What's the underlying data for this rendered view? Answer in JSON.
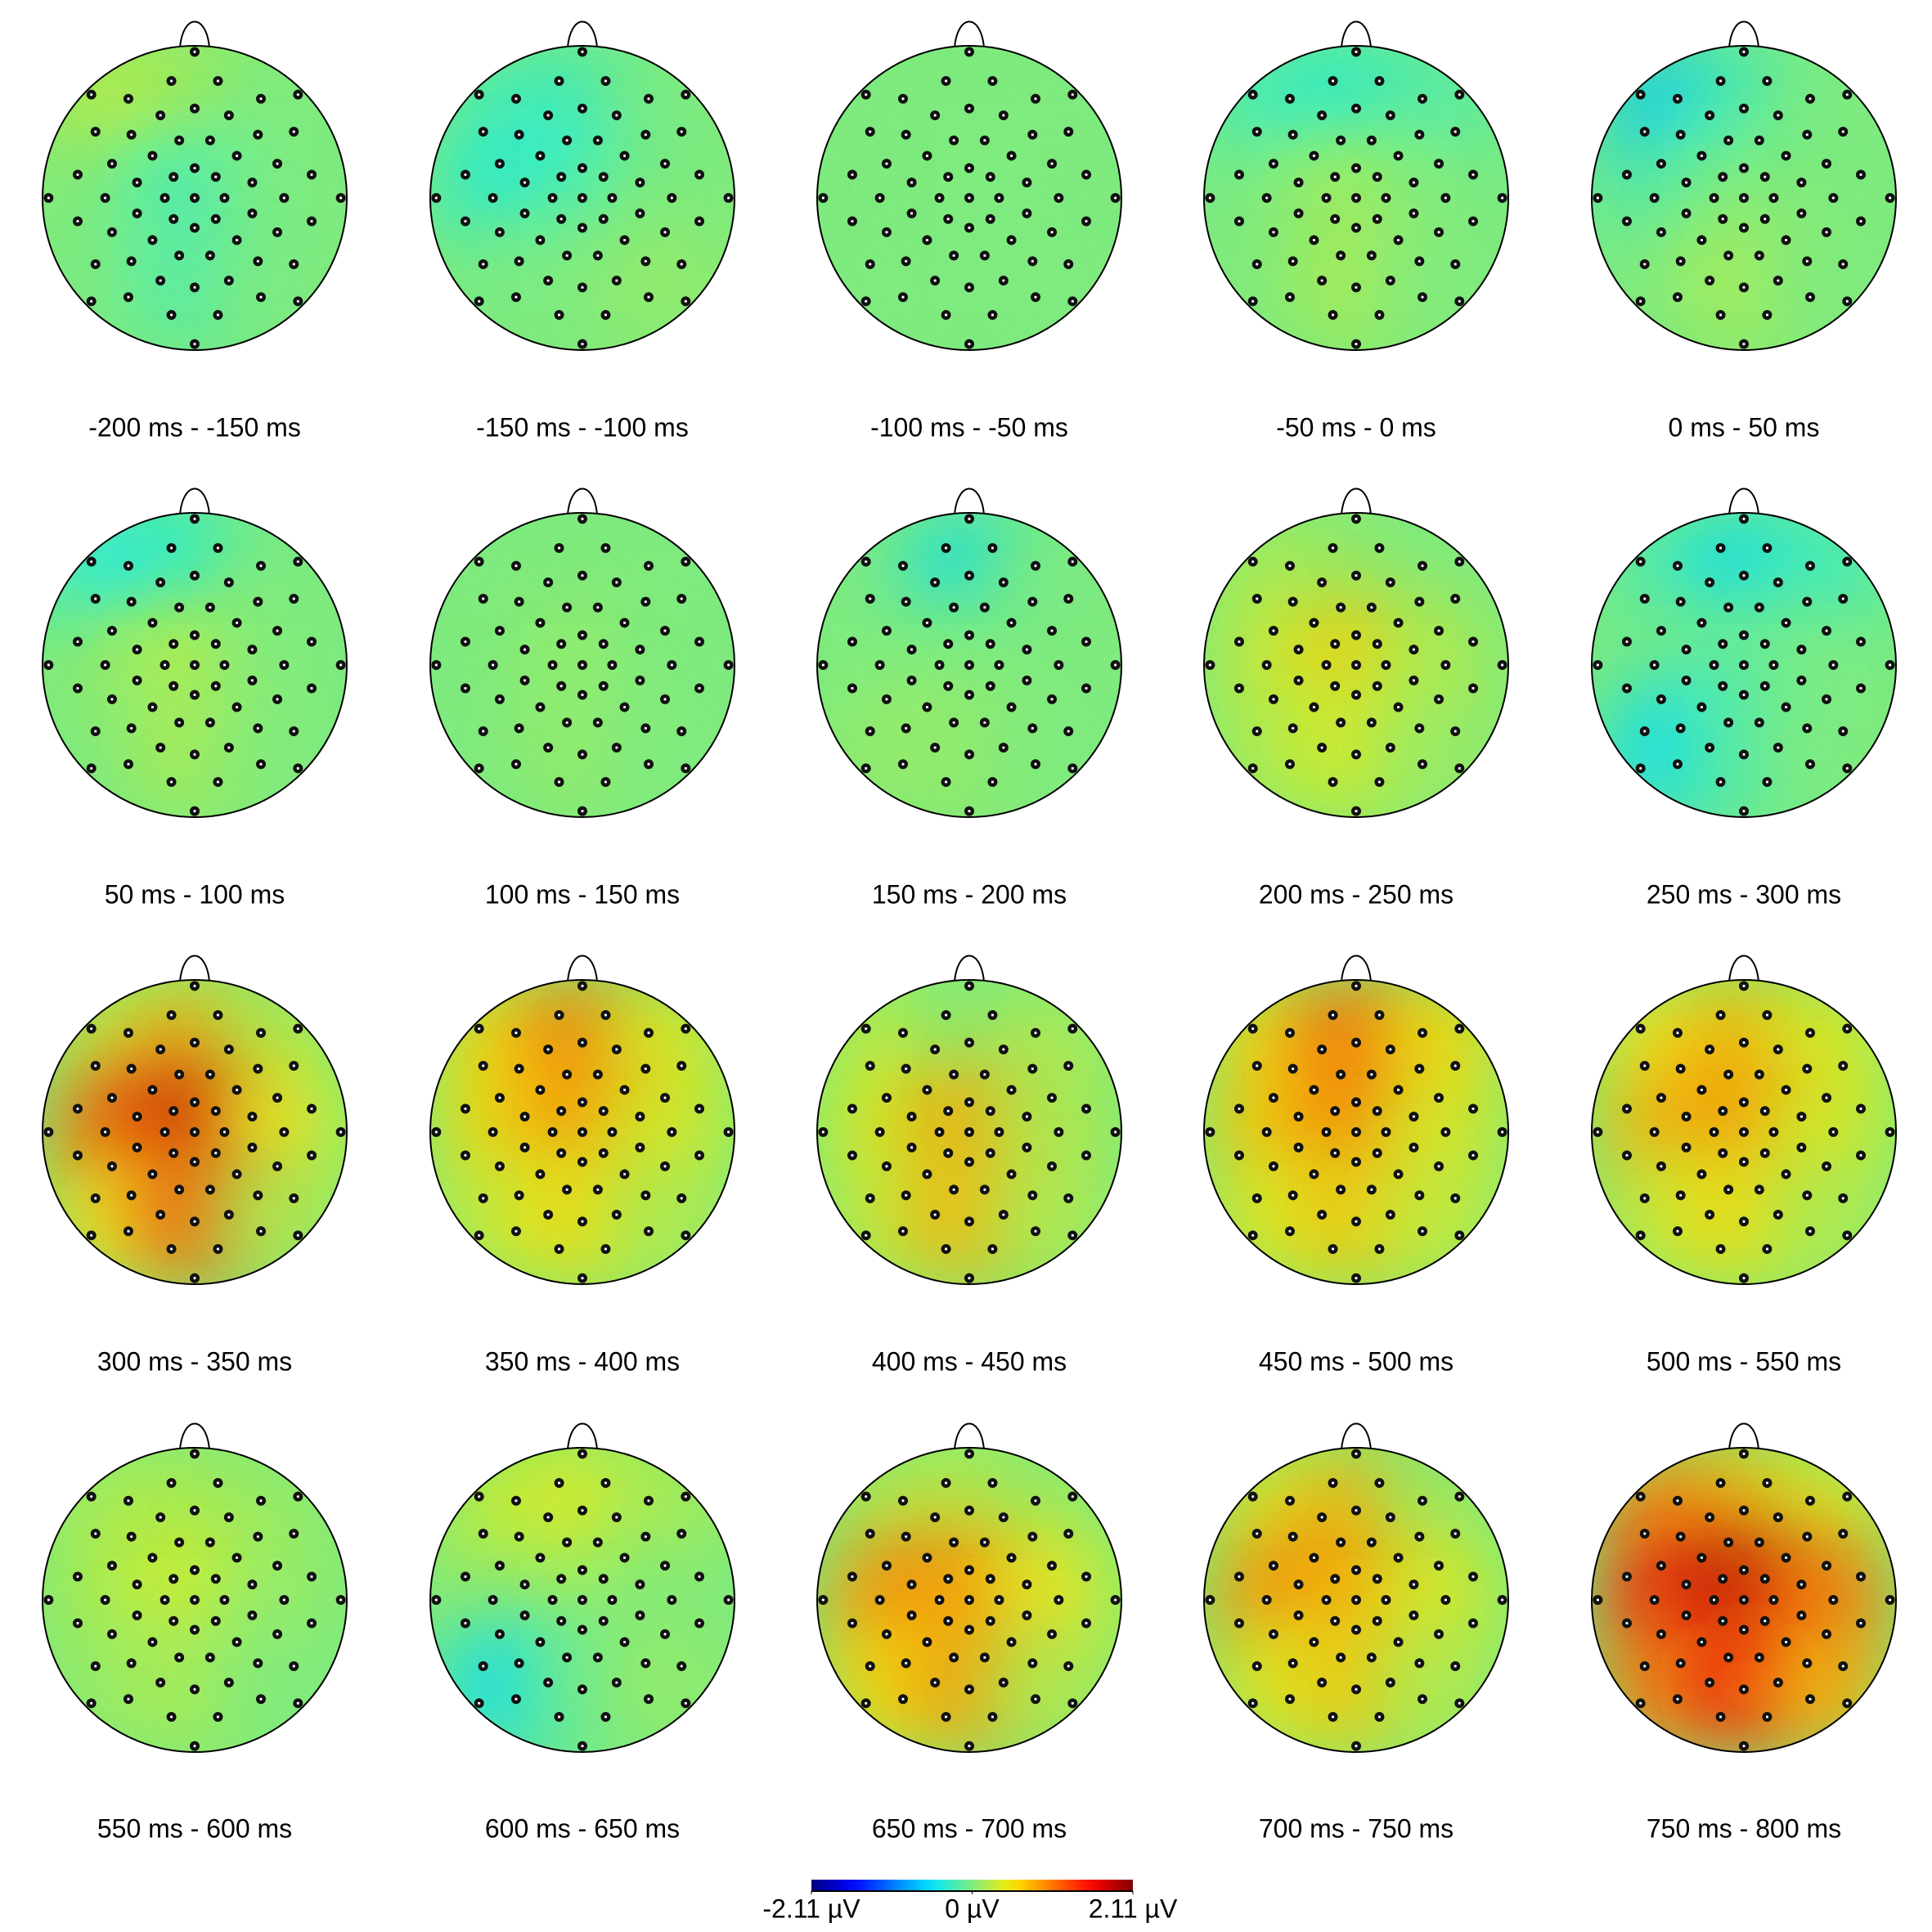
{
  "chart_data": [
    {
      "type": "topomap",
      "title": "-200 ms - -150 ms",
      "values": [
        0.3,
        0.2,
        0,
        0,
        -0.3,
        0,
        0,
        -0.2,
        0
      ]
    },
    {
      "type": "topomap",
      "title": "-150 ms - -100 ms",
      "values": [
        -0.2,
        -0.3,
        0,
        -0.4,
        -0.3,
        0,
        0,
        0,
        0.1
      ]
    },
    {
      "type": "topomap",
      "title": "-100 ms - -50 ms",
      "values": [
        0,
        0,
        0,
        0,
        0,
        0,
        0,
        0,
        0
      ]
    },
    {
      "type": "topomap",
      "title": "-50 ms - 0 ms",
      "values": [
        -0.3,
        -0.4,
        -0.2,
        0,
        0.2,
        0,
        0,
        0.2,
        0
      ]
    },
    {
      "type": "topomap",
      "title": "0 ms - 50 ms",
      "values": [
        -0.7,
        -0.3,
        0,
        -0.2,
        0,
        0,
        0,
        0.2,
        0
      ]
    },
    {
      "type": "topomap",
      "title": "50 ms - 100 ms",
      "values": [
        -0.5,
        -0.4,
        0,
        0.1,
        0.3,
        0,
        0,
        0.2,
        0
      ]
    },
    {
      "type": "topomap",
      "title": "100 ms - 150 ms",
      "values": [
        0,
        0,
        0,
        0,
        0.1,
        0,
        0,
        0.1,
        0
      ]
    },
    {
      "type": "topomap",
      "title": "150 ms - 200 ms",
      "values": [
        0,
        -0.6,
        0,
        0,
        0,
        0,
        0.1,
        0.1,
        0
      ]
    },
    {
      "type": "topomap",
      "title": "200 ms - 250 ms",
      "values": [
        0.2,
        0.1,
        0,
        0.3,
        0.7,
        0.2,
        0.2,
        0.4,
        0.1
      ]
    },
    {
      "type": "topomap",
      "title": "250 ms - 300 ms",
      "values": [
        -0.2,
        -0.6,
        -0.3,
        0,
        -0.1,
        0,
        -0.6,
        -0.2,
        0
      ]
    },
    {
      "type": "topomap",
      "title": "300 ms - 350 ms",
      "values": [
        0.3,
        0.8,
        0.2,
        1.2,
        1.8,
        0.5,
        0.5,
        1.2,
        0.2
      ]
    },
    {
      "type": "topomap",
      "title": "350 ms - 400 ms",
      "values": [
        0.6,
        1.1,
        0.4,
        0.6,
        1.0,
        0.4,
        0.3,
        0.6,
        0.2
      ]
    },
    {
      "type": "topomap",
      "title": "400 ms - 450 ms",
      "values": [
        0.3,
        0,
        0.2,
        0.4,
        0.9,
        0.2,
        0.3,
        0.8,
        0.2
      ]
    },
    {
      "type": "topomap",
      "title": "450 ms - 500 ms",
      "values": [
        0.6,
        1.2,
        0.6,
        0.7,
        1.1,
        0.4,
        0.4,
        0.7,
        0.3
      ]
    },
    {
      "type": "topomap",
      "title": "500 ms - 550 ms",
      "values": [
        0.5,
        0.8,
        0.4,
        0.8,
        1.0,
        0.4,
        0.3,
        0.6,
        0.2
      ]
    },
    {
      "type": "topomap",
      "title": "550 ms - 600 ms",
      "values": [
        0.2,
        0.2,
        0.1,
        0.2,
        0.4,
        0.1,
        0.1,
        0.2,
        0
      ]
    },
    {
      "type": "topomap",
      "title": "600 ms - 650 ms",
      "values": [
        0.3,
        0.5,
        0.2,
        0.1,
        0.2,
        0,
        -0.6,
        -0.1,
        0.1
      ]
    },
    {
      "type": "topomap",
      "title": "650 ms - 700 ms",
      "values": [
        0.2,
        0.3,
        0.1,
        1.0,
        1.0,
        0.5,
        0.6,
        0.9,
        0.2
      ]
    },
    {
      "type": "topomap",
      "title": "700 ms - 750 ms",
      "values": [
        0.4,
        0.8,
        0.1,
        1.0,
        0.9,
        0.4,
        0.4,
        0.7,
        0.2
      ]
    },
    {
      "type": "topomap",
      "title": "750 ms - 800 ms",
      "values": [
        1.0,
        0.8,
        0.4,
        1.5,
        1.9,
        1.1,
        1.0,
        1.5,
        0.8
      ]
    },
    {
      "type": "colorbar",
      "xlim": [
        -2.11,
        2.11
      ],
      "xticks": [
        {
          "value": -2.11,
          "label": "-2.11 µV"
        },
        {
          "value": 0,
          "label": "0 µV"
        },
        {
          "value": 2.11,
          "label": "2.11 µV"
        }
      ]
    }
  ]
}
